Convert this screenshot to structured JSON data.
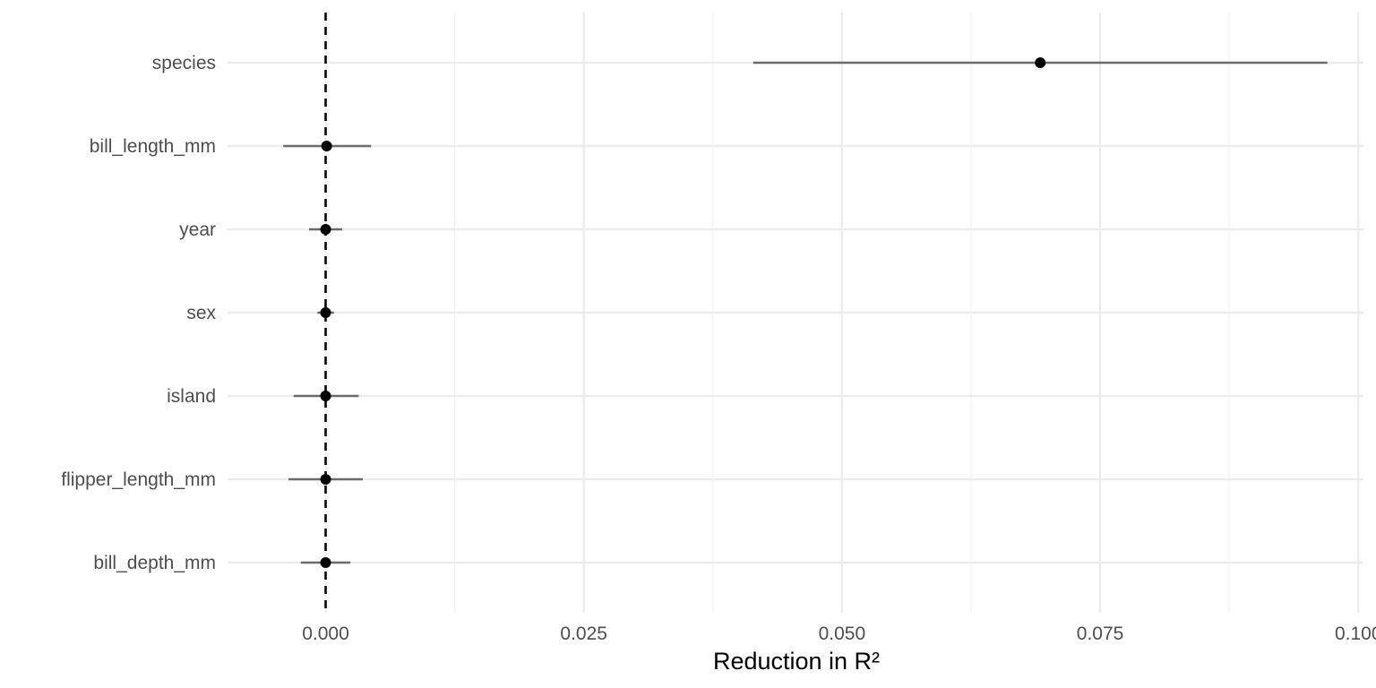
{
  "chart_data": {
    "type": "scatter",
    "subtype": "point-range",
    "title": "",
    "xlabel": "Reduction in R²",
    "ylabel": "",
    "xlim": [
      -0.0095,
      0.1005
    ],
    "x_ticks": [
      0.0,
      0.025,
      0.05,
      0.075,
      0.1
    ],
    "x_tick_labels": [
      "0.000",
      "0.025",
      "0.050",
      "0.075",
      "0.100"
    ],
    "reference_line": {
      "x": 0.0,
      "style": "dashed",
      "color": "#000000"
    },
    "grid": true,
    "legend": "none",
    "point_color": "#000000",
    "interval_color": "#6b6b6b",
    "categories": [
      "species",
      "bill_length_mm",
      "year",
      "sex",
      "island",
      "flipper_length_mm",
      "bill_depth_mm"
    ],
    "points": [
      {
        "label": "species",
        "value": 0.0692,
        "low": 0.0414,
        "high": 0.097
      },
      {
        "label": "bill_length_mm",
        "value": 0.0001,
        "low": -0.0041,
        "high": 0.0044
      },
      {
        "label": "year",
        "value": 0.0,
        "low": -0.0016,
        "high": 0.0016
      },
      {
        "label": "sex",
        "value": 0.0,
        "low": -0.0008,
        "high": 0.0008
      },
      {
        "label": "island",
        "value": 0.0,
        "low": -0.0031,
        "high": 0.0032
      },
      {
        "label": "flipper_length_mm",
        "value": 0.0,
        "low": -0.0036,
        "high": 0.0036
      },
      {
        "label": "bill_depth_mm",
        "value": 0.0,
        "low": -0.0024,
        "high": 0.0024
      }
    ]
  }
}
